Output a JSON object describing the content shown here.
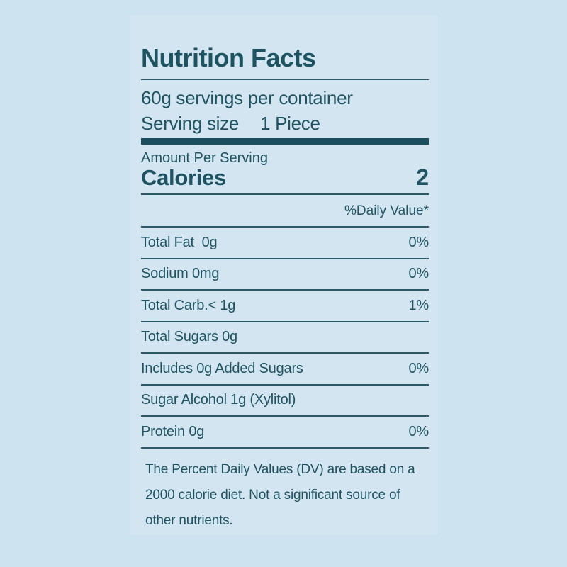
{
  "label": {
    "title": "Nutrition Facts",
    "servings_per_container": "60g servings per container",
    "serving_size_label": "Serving size",
    "serving_size_value": "1 Piece",
    "amount_per_serving": "Amount Per Serving",
    "calories_label": "Calories",
    "calories_value": "2",
    "daily_value_header": "%Daily Value*",
    "rows": [
      {
        "name": "Total Fat  0g",
        "dv": "0%"
      },
      {
        "name": "Sodium 0mg",
        "dv": "0%"
      },
      {
        "name": "Total Carb.< 1g",
        "dv": "1%"
      },
      {
        "name": "Total Sugars 0g",
        "dv": ""
      },
      {
        "name": "Includes 0g Added Sugars",
        "dv": "0%"
      },
      {
        "name": "Sugar Alcohol 1g (Xylitol)",
        "dv": ""
      },
      {
        "name": "Protein 0g",
        "dv": "0%"
      }
    ],
    "footnote_lines": [
      "The Percent Daily Values (DV) are based on a",
      "2000 calorie diet. Not a significant source of",
      "other nutrients."
    ]
  },
  "colors": {
    "background": "#cde3ef",
    "text": "#1f5361",
    "rule": "#2a5866",
    "thick_bar": "#1c4f5e"
  }
}
